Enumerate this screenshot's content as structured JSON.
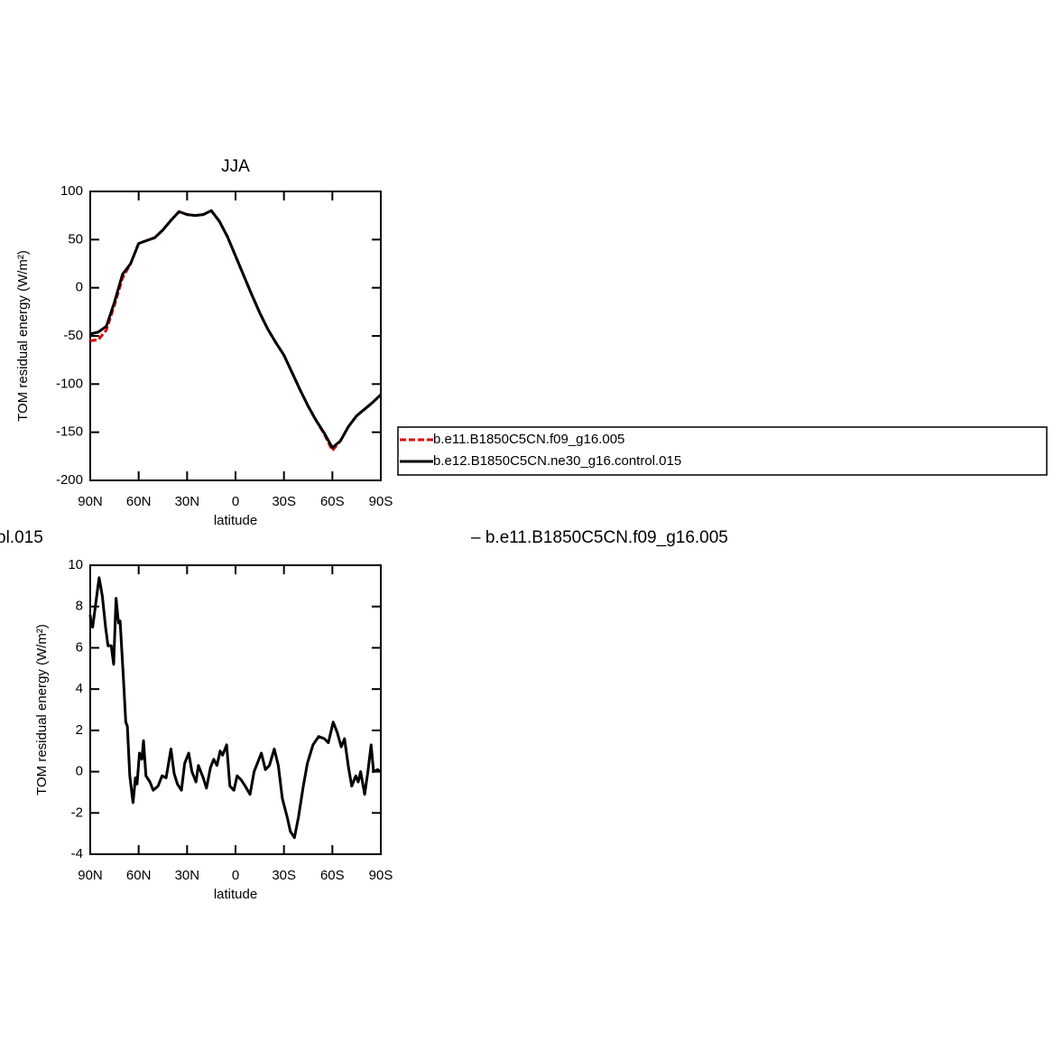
{
  "chart_data": [
    {
      "type": "line",
      "title": "JJA",
      "x_label": "latitude",
      "y_label": "TOM residual energy (W/m²)",
      "xlim": [
        90,
        -90
      ],
      "xticks": [
        {
          "value": 90,
          "label": "90N"
        },
        {
          "value": 60,
          "label": "60N"
        },
        {
          "value": 30,
          "label": "30N"
        },
        0,
        {
          "value": -30,
          "label": "30S"
        },
        {
          "value": -60,
          "label": "60S"
        },
        {
          "value": -90,
          "label": "90S"
        }
      ],
      "ylim": [
        -200,
        100
      ],
      "yticks": [
        -200,
        -150,
        -100,
        -50,
        0,
        50,
        100
      ],
      "x": [
        90,
        85,
        80,
        75,
        70,
        65,
        60,
        55,
        50,
        45,
        40,
        35,
        30,
        25,
        20,
        15,
        10,
        5,
        0,
        -5,
        -10,
        -15,
        -20,
        -25,
        -30,
        -35,
        -40,
        -45,
        -50,
        -55,
        -60,
        -65,
        -70,
        -75,
        -80,
        -85,
        -90
      ],
      "series": [
        {
          "name": "b.e11.B1850C5CN.f09_g16.005",
          "color": "#e00000",
          "line_style": "dashed",
          "values": [
            -55,
            -54,
            -44,
            -18,
            10,
            25,
            46,
            49,
            52,
            60,
            70,
            79,
            76,
            75,
            76,
            80,
            69,
            53,
            33,
            13,
            -7,
            -26,
            -43,
            -57,
            -70,
            -88,
            -106,
            -123,
            -138,
            -152,
            -169,
            -159,
            -144,
            -133,
            -126,
            -119,
            -111
          ]
        },
        {
          "name": "b.e12.B1850C5CN.ne30_g16.control.015",
          "color": "#000000",
          "line_style": "solid",
          "values": [
            -48,
            -46,
            -40,
            -15,
            14,
            25,
            46,
            49,
            52,
            60,
            70,
            79,
            76,
            75,
            76,
            80,
            69,
            53,
            33,
            13,
            -7,
            -26,
            -43,
            -57,
            -70,
            -88,
            -106,
            -123,
            -138,
            -151,
            -166,
            -159,
            -144,
            -133,
            -126,
            -119,
            -111
          ]
        }
      ],
      "legend": "right"
    },
    {
      "type": "line",
      "subtitle_fragments": [
        "ol.015",
        "– b.e11.B1850C5CN.f09_g16.005"
      ],
      "x_label": "latitude",
      "y_label": "TOM residual energy (W/m²)",
      "xlim": [
        90,
        -90
      ],
      "xticks": [
        {
          "value": 90,
          "label": "90N"
        },
        {
          "value": 60,
          "label": "60N"
        },
        {
          "value": 30,
          "label": "30N"
        },
        0,
        {
          "value": -30,
          "label": "30S"
        },
        {
          "value": -60,
          "label": "60S"
        },
        {
          "value": -90,
          "label": "90S"
        }
      ],
      "ylim": [
        -4,
        10
      ],
      "yticks": [
        -4,
        -2,
        0,
        2,
        4,
        6,
        8,
        10
      ],
      "x": [
        90,
        89.5,
        88.5,
        84.5,
        82.5,
        80.5,
        79,
        77,
        75.5,
        74,
        72.5,
        71.5,
        69.5,
        68,
        67,
        65.5,
        63.5,
        62,
        61,
        59.5,
        58,
        57,
        55.5,
        53,
        51,
        48,
        45.5,
        43,
        40,
        38,
        36,
        33.5,
        31.5,
        29,
        27,
        24.5,
        23,
        20,
        18,
        15.5,
        13.5,
        11.5,
        9.5,
        8,
        5.5,
        3.5,
        1,
        -1,
        -3.5,
        -6,
        -9,
        -11.5,
        -14.5,
        -16,
        -18.5,
        -21,
        -24,
        -26.5,
        -29,
        -32,
        -34,
        -36.5,
        -39,
        -42,
        -44.5,
        -48,
        -51.5,
        -55,
        -57.5,
        -60.5,
        -63,
        -65.5,
        -67.5,
        -70,
        -72,
        -74.5,
        -76,
        -77.5,
        -80,
        -82,
        -84,
        -85.5,
        -88,
        -90
      ],
      "series": [
        {
          "color": "#000000",
          "line_style": "solid",
          "values": [
            7.6,
            7.2,
            7.0,
            9.4,
            8.5,
            7.0,
            6.1,
            6.1,
            5.2,
            8.4,
            7.2,
            7.3,
            4.6,
            2.4,
            2.2,
            -0.2,
            -1.5,
            -0.3,
            -0.6,
            0.9,
            0.6,
            1.5,
            -0.2,
            -0.5,
            -0.9,
            -0.7,
            -0.2,
            -0.3,
            1.1,
            -0.1,
            -0.6,
            -0.9,
            0.4,
            0.9,
            0,
            -0.5,
            0.3,
            -0.3,
            -0.8,
            0.2,
            0.6,
            0.3,
            1.0,
            0.8,
            1.3,
            -0.7,
            -0.9,
            -0.2,
            -0.4,
            -0.7,
            -1.1,
            0,
            0.6,
            0.9,
            0.1,
            0.3,
            1.1,
            0.3,
            -1.3,
            -2.2,
            -2.9,
            -3.2,
            -2.2,
            -0.7,
            0.4,
            1.3,
            1.7,
            1.6,
            1.4,
            2.4,
            1.9,
            1.2,
            1.6,
            0.2,
            -0.7,
            -0.2,
            -0.5,
            0,
            -1.1,
            0,
            1.3,
            0,
            0.1,
            0
          ]
        }
      ]
    }
  ]
}
